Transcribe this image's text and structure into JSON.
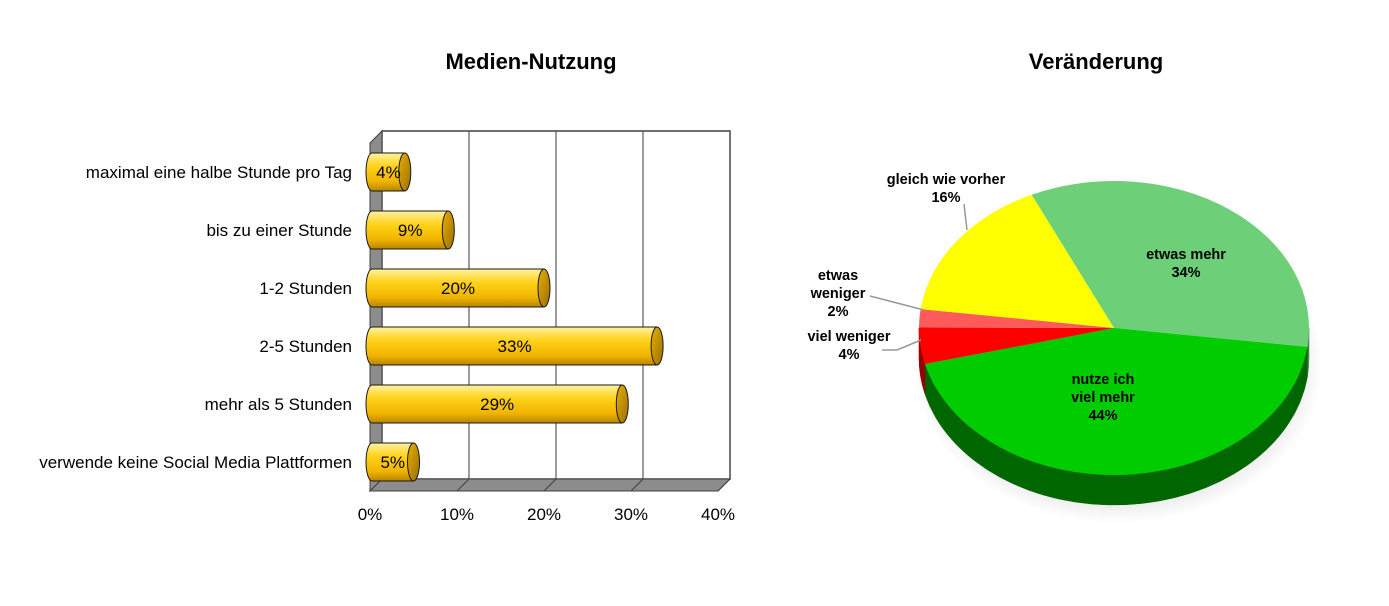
{
  "chart_data": [
    {
      "type": "bar",
      "orientation": "horizontal",
      "style": "3d-cylinder",
      "title": "Medien-Nutzung",
      "categories": [
        "maximal eine halbe Stunde pro Tag",
        "bis zu einer Stunde",
        "1-2 Stunden",
        "2-5 Stunden",
        "mehr als 5 Stunden",
        "verwende keine Social Media Plattformen"
      ],
      "values": [
        4,
        9,
        20,
        33,
        29,
        5
      ],
      "value_labels": [
        "4%",
        "9%",
        "20%",
        "33%",
        "29%",
        "5%"
      ],
      "xlim": [
        0,
        40
      ],
      "xticks": [
        0,
        10,
        20,
        30,
        40
      ],
      "xtick_labels": [
        "0%",
        "10%",
        "20%",
        "30%",
        "40%"
      ],
      "grid": true,
      "colors": {
        "bar": "#FFCC00",
        "bar_dark": "#C89600",
        "wall": "#8C8C8C",
        "grid": "#595959"
      }
    },
    {
      "type": "pie",
      "style": "3d",
      "title": "Veränderung",
      "slices": [
        {
          "name": "etwas mehr",
          "label": [
            "etwas mehr",
            "34%"
          ],
          "value": 34,
          "color": "#6ECF79",
          "side": "#3F8E48"
        },
        {
          "name": "nutze ich viel mehr",
          "label": [
            "nutze ich",
            "viel mehr",
            "44%"
          ],
          "value": 44,
          "color": "#00CC00",
          "side": "#006600"
        },
        {
          "name": "viel weniger",
          "label": [
            "viel weniger",
            "4%"
          ],
          "value": 4,
          "color": "#FF0000",
          "side": "#990000"
        },
        {
          "name": "etwas weniger",
          "label": [
            "etwas",
            "weniger",
            "2%"
          ],
          "value": 2,
          "color": "#FF5A5A",
          "side": "#A33333"
        },
        {
          "name": "gleich wie vorher",
          "label": [
            "gleich wie vorher",
            "16%"
          ],
          "value": 16,
          "color": "#FFFF00",
          "side": "#999900"
        }
      ]
    }
  ]
}
